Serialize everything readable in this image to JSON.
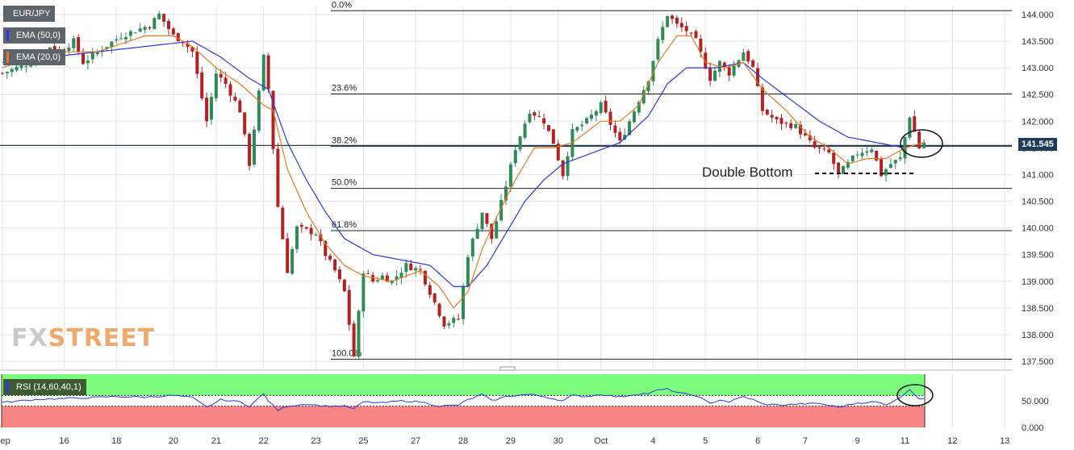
{
  "symbol": "EUR/JPY",
  "indicators": {
    "ema50": {
      "label": "EMA (50,0)",
      "color": "#2b37e0"
    },
    "ema20": {
      "label": "EMA (20,0)",
      "color": "#e8791e"
    },
    "rsi": {
      "label": "RSI (14,60,40,1)",
      "color": "#2b37e0",
      "upper": 60,
      "lower": 40
    }
  },
  "watermark": {
    "left": "FX",
    "right": "STREET"
  },
  "annotation": "Double Bottom",
  "current_price": "141.545",
  "chart_data": {
    "type": "candlestick",
    "title": "EUR/JPY",
    "y_ticks": [
      "144.000",
      "143.500",
      "143.000",
      "142.500",
      "142.000",
      "141.500",
      "141.000",
      "140.500",
      "140.000",
      "139.500",
      "139.000",
      "138.500",
      "138.000",
      "137.500"
    ],
    "ylim": [
      137.35,
      144.15
    ],
    "x_ticks": [
      "Sep",
      "16",
      "18",
      "20",
      "21",
      "22",
      "23",
      "25",
      "27",
      "28",
      "29",
      "30",
      "Oct",
      "4",
      "5",
      "6",
      "7",
      "9",
      "11",
      "12",
      "13"
    ],
    "rsi_ticks": [
      "50.000",
      "0.000"
    ],
    "fibonacci": [
      {
        "label": "0.0%",
        "price": 144.07
      },
      {
        "label": "23.6%",
        "price": 142.51
      },
      {
        "label": "38.2%",
        "price": 141.53
      },
      {
        "label": "50.0%",
        "price": 140.74
      },
      {
        "label": "61.8%",
        "price": 139.95
      },
      {
        "label": "100.0%",
        "price": 137.54
      }
    ],
    "close_path": [
      [
        0,
        142.9
      ],
      [
        6,
        143.1
      ],
      [
        10,
        143.4
      ],
      [
        12,
        143.3
      ],
      [
        15,
        143.5
      ],
      [
        17,
        143.1
      ],
      [
        20,
        143.3
      ],
      [
        25,
        143.6
      ],
      [
        31,
        143.8
      ],
      [
        33,
        144.0
      ],
      [
        36,
        143.6
      ],
      [
        38,
        143.5
      ],
      [
        40,
        143.3
      ],
      [
        43,
        142.0
      ],
      [
        45,
        142.9
      ],
      [
        47,
        142.7
      ],
      [
        50,
        142.2
      ],
      [
        52,
        141.2
      ],
      [
        55,
        143.2
      ],
      [
        56,
        142.6
      ],
      [
        58,
        140.4
      ],
      [
        60,
        139.2
      ],
      [
        62,
        140.0
      ],
      [
        66,
        139.9
      ],
      [
        68,
        139.5
      ],
      [
        70,
        139.2
      ],
      [
        72,
        138.8
      ],
      [
        74,
        137.6
      ],
      [
        76,
        139.2
      ],
      [
        78,
        139.0
      ],
      [
        80,
        139.1
      ],
      [
        82,
        139.0
      ],
      [
        85,
        139.3
      ],
      [
        88,
        139.2
      ],
      [
        90,
        138.8
      ],
      [
        93,
        138.2
      ],
      [
        96,
        138.3
      ],
      [
        98,
        139.5
      ],
      [
        101,
        140.3
      ],
      [
        103,
        139.8
      ],
      [
        106,
        140.8
      ],
      [
        108,
        141.5
      ],
      [
        111,
        142.2
      ],
      [
        114,
        142.0
      ],
      [
        116,
        141.6
      ],
      [
        118,
        141.0
      ],
      [
        120,
        141.8
      ],
      [
        123,
        142.0
      ],
      [
        126,
        142.3
      ],
      [
        130,
        141.6
      ],
      [
        133,
        142.2
      ],
      [
        136,
        142.8
      ],
      [
        138,
        143.5
      ],
      [
        140,
        144.0
      ],
      [
        142,
        143.8
      ],
      [
        144,
        143.7
      ],
      [
        146,
        143.5
      ],
      [
        149,
        142.8
      ],
      [
        151,
        143.1
      ],
      [
        153,
        142.9
      ],
      [
        156,
        143.3
      ],
      [
        158,
        143.0
      ],
      [
        160,
        142.2
      ],
      [
        163,
        142.0
      ],
      [
        167,
        141.9
      ],
      [
        169,
        141.7
      ],
      [
        171,
        141.5
      ],
      [
        174,
        141.4
      ],
      [
        176,
        141.0
      ],
      [
        178,
        141.2
      ],
      [
        180,
        141.4
      ],
      [
        183,
        141.5
      ],
      [
        185,
        141.0
      ],
      [
        187,
        141.2
      ],
      [
        189,
        141.3
      ],
      [
        191,
        142.1
      ],
      [
        193,
        141.5
      ],
      [
        194,
        141.6
      ]
    ],
    "ema20_path": [
      [
        0,
        143.0
      ],
      [
        10,
        143.3
      ],
      [
        20,
        143.3
      ],
      [
        30,
        143.6
      ],
      [
        36,
        143.6
      ],
      [
        40,
        143.4
      ],
      [
        45,
        143.0
      ],
      [
        50,
        142.7
      ],
      [
        55,
        142.3
      ],
      [
        57,
        142.2
      ],
      [
        60,
        141.1
      ],
      [
        64,
        140.3
      ],
      [
        68,
        139.7
      ],
      [
        72,
        139.3
      ],
      [
        76,
        139.1
      ],
      [
        82,
        139.0
      ],
      [
        88,
        139.2
      ],
      [
        92,
        138.9
      ],
      [
        95,
        138.5
      ],
      [
        98,
        138.8
      ],
      [
        101,
        139.6
      ],
      [
        104,
        140.2
      ],
      [
        108,
        140.9
      ],
      [
        112,
        141.5
      ],
      [
        116,
        141.5
      ],
      [
        120,
        141.6
      ],
      [
        126,
        142.0
      ],
      [
        130,
        142.0
      ],
      [
        134,
        142.3
      ],
      [
        138,
        143.1
      ],
      [
        142,
        143.6
      ],
      [
        145,
        143.6
      ],
      [
        148,
        143.1
      ],
      [
        152,
        143.0
      ],
      [
        156,
        143.1
      ],
      [
        160,
        142.6
      ],
      [
        165,
        142.2
      ],
      [
        170,
        141.7
      ],
      [
        174,
        141.5
      ],
      [
        178,
        141.2
      ],
      [
        182,
        141.3
      ],
      [
        186,
        141.3
      ],
      [
        190,
        141.5
      ],
      [
        194,
        141.6
      ]
    ],
    "ema50_path": [
      [
        0,
        143.1
      ],
      [
        10,
        143.2
      ],
      [
        20,
        143.3
      ],
      [
        30,
        143.4
      ],
      [
        40,
        143.5
      ],
      [
        46,
        143.2
      ],
      [
        52,
        142.8
      ],
      [
        56,
        142.6
      ],
      [
        60,
        141.6
      ],
      [
        64,
        140.9
      ],
      [
        68,
        140.3
      ],
      [
        72,
        139.8
      ],
      [
        78,
        139.5
      ],
      [
        84,
        139.4
      ],
      [
        90,
        139.3
      ],
      [
        95,
        138.9
      ],
      [
        98,
        138.9
      ],
      [
        102,
        139.3
      ],
      [
        106,
        139.9
      ],
      [
        110,
        140.5
      ],
      [
        114,
        140.9
      ],
      [
        118,
        141.2
      ],
      [
        124,
        141.4
      ],
      [
        130,
        141.6
      ],
      [
        136,
        142.1
      ],
      [
        140,
        142.7
      ],
      [
        144,
        143.0
      ],
      [
        150,
        143.0
      ],
      [
        156,
        143.1
      ],
      [
        160,
        142.8
      ],
      [
        166,
        142.4
      ],
      [
        172,
        142.0
      ],
      [
        178,
        141.7
      ],
      [
        184,
        141.6
      ],
      [
        190,
        141.5
      ],
      [
        194,
        141.6
      ]
    ],
    "rsi_path": [
      [
        0,
        47
      ],
      [
        8,
        53
      ],
      [
        16,
        55
      ],
      [
        24,
        58
      ],
      [
        30,
        57
      ],
      [
        36,
        60
      ],
      [
        40,
        56
      ],
      [
        43,
        38
      ],
      [
        46,
        52
      ],
      [
        50,
        48
      ],
      [
        52,
        40
      ],
      [
        55,
        63
      ],
      [
        56,
        50
      ],
      [
        58,
        32
      ],
      [
        60,
        40
      ],
      [
        64,
        44
      ],
      [
        68,
        40
      ],
      [
        72,
        40
      ],
      [
        74,
        35
      ],
      [
        76,
        48
      ],
      [
        80,
        46
      ],
      [
        84,
        50
      ],
      [
        88,
        48
      ],
      [
        92,
        40
      ],
      [
        96,
        42
      ],
      [
        98,
        52
      ],
      [
        101,
        62
      ],
      [
        103,
        50
      ],
      [
        106,
        58
      ],
      [
        108,
        60
      ],
      [
        111,
        62
      ],
      [
        114,
        58
      ],
      [
        118,
        50
      ],
      [
        120,
        60
      ],
      [
        123,
        58
      ],
      [
        126,
        62
      ],
      [
        130,
        57
      ],
      [
        133,
        62
      ],
      [
        136,
        64
      ],
      [
        138,
        70
      ],
      [
        140,
        72
      ],
      [
        142,
        66
      ],
      [
        144,
        62
      ],
      [
        146,
        60
      ],
      [
        149,
        45
      ],
      [
        151,
        52
      ],
      [
        153,
        48
      ],
      [
        156,
        58
      ],
      [
        158,
        52
      ],
      [
        160,
        44
      ],
      [
        164,
        42
      ],
      [
        168,
        44
      ],
      [
        172,
        45
      ],
      [
        176,
        38
      ],
      [
        180,
        46
      ],
      [
        184,
        48
      ],
      [
        186,
        42
      ],
      [
        188,
        52
      ],
      [
        190,
        62
      ],
      [
        191,
        72
      ],
      [
        193,
        54
      ],
      [
        194,
        55
      ]
    ]
  }
}
